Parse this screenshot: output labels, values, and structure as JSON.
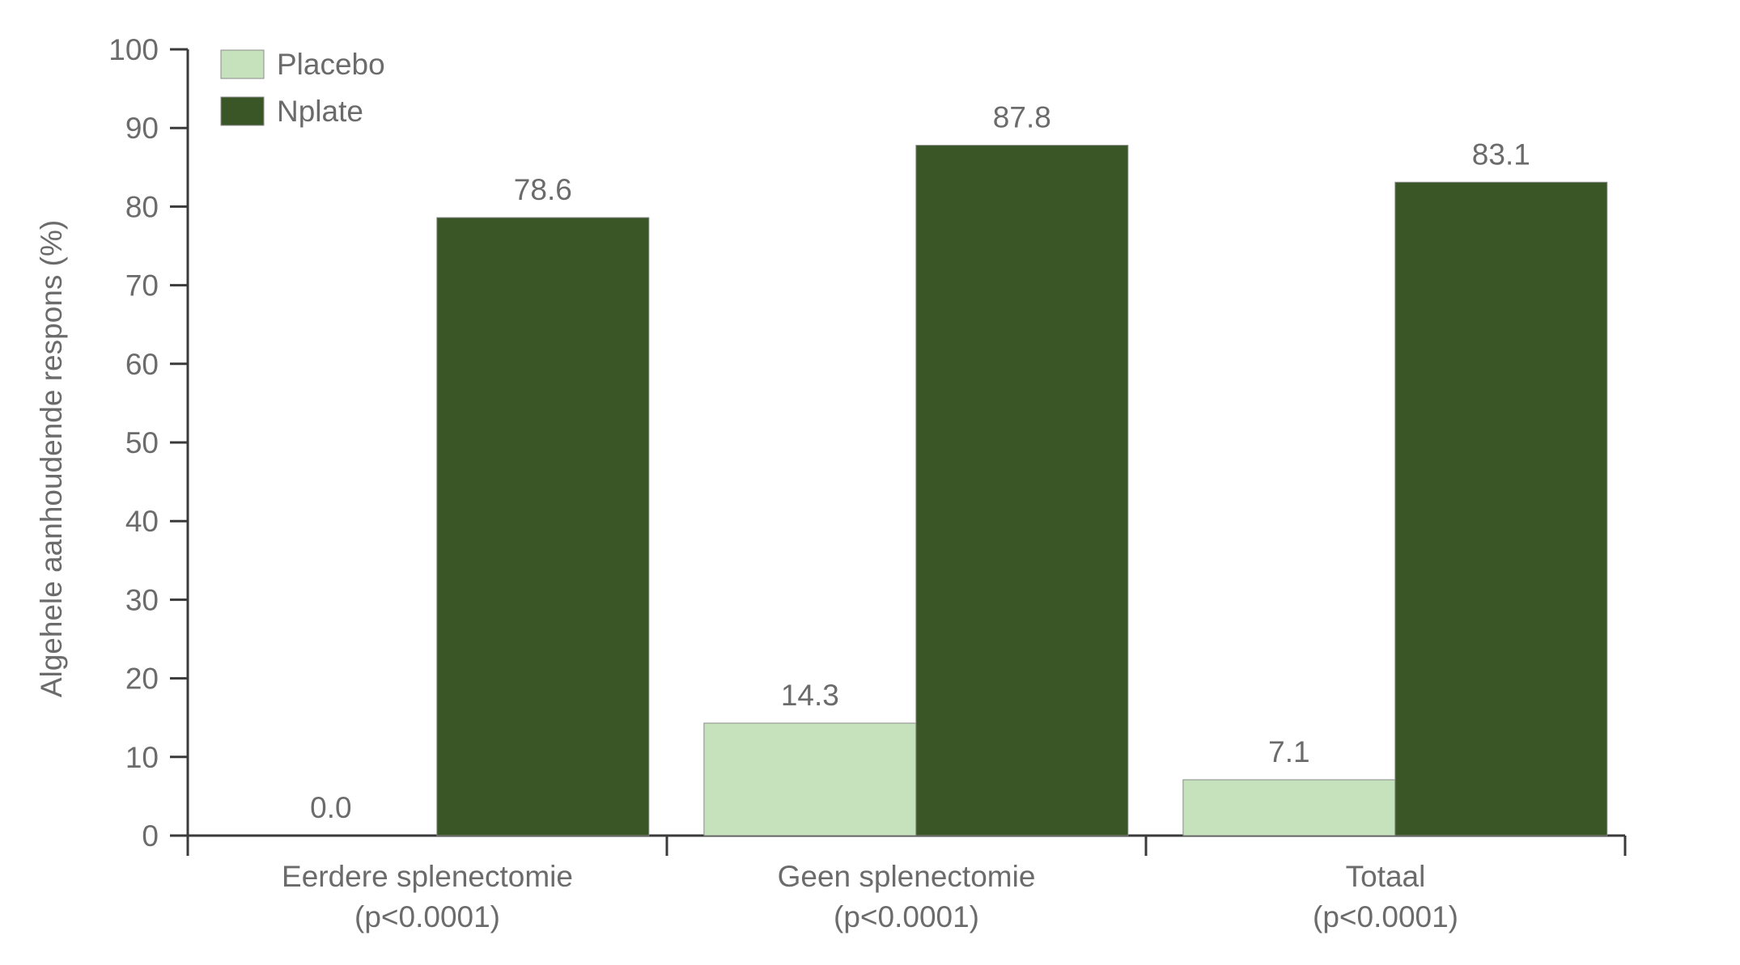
{
  "chart_data": {
    "type": "bar",
    "title": "",
    "ylabel": "Algehele aanhoudende respons (%)",
    "xlabel": "",
    "ylim": [
      0,
      100
    ],
    "yticks": [
      0,
      10,
      20,
      30,
      40,
      50,
      60,
      70,
      80,
      90,
      100
    ],
    "categories": [
      {
        "line1": "Eerdere splenectomie",
        "line2": "(p<0.0001)"
      },
      {
        "line1": "Geen splenectomie",
        "line2": "(p<0.0001)"
      },
      {
        "line1": "Totaal",
        "line2": "(p<0.0001)"
      }
    ],
    "series": [
      {
        "name": "Placebo",
        "color": "#c6e2bd",
        "values": [
          0.0,
          14.3,
          7.1
        ],
        "labels": [
          "0.0",
          "14.3",
          "7.1"
        ]
      },
      {
        "name": "Nplate",
        "color": "#3a5526",
        "values": [
          78.6,
          87.8,
          83.1
        ],
        "labels": [
          "78.6",
          "87.8",
          "83.1"
        ]
      }
    ],
    "legend_position": "top-left",
    "grid": false
  }
}
